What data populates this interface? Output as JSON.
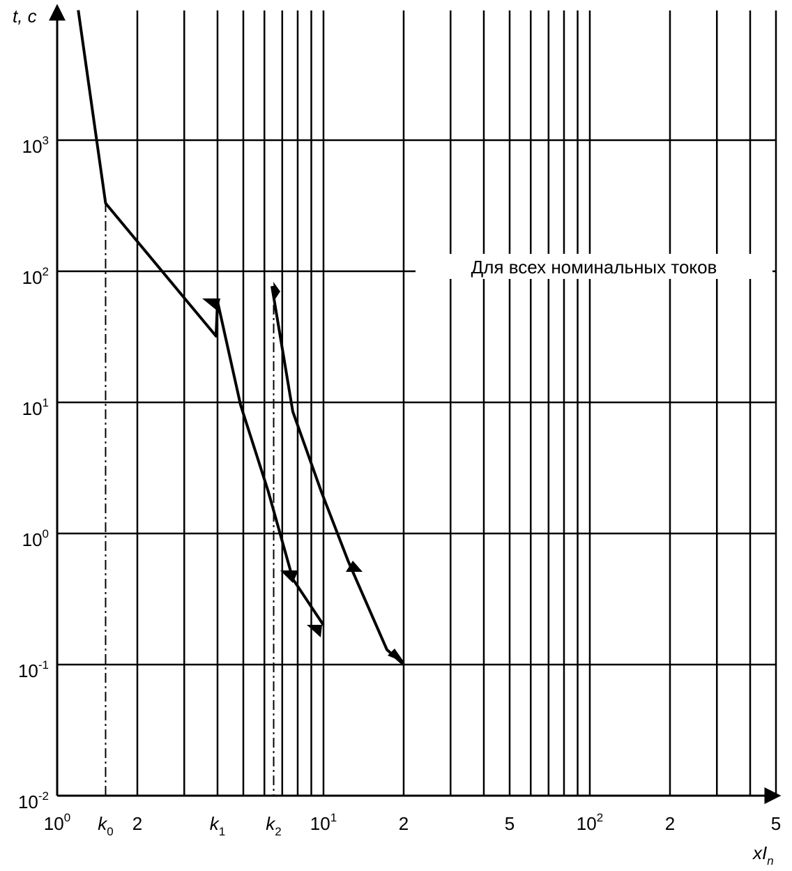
{
  "chart_data": {
    "type": "line",
    "y_label": "t, c",
    "x_label": "xI",
    "x_label_subscript": "n",
    "annotation": "Для всех номинальных токов",
    "log_x": true,
    "log_y": true,
    "grid": true,
    "xlim": [
      1,
      500
    ],
    "ylim": [
      0.01,
      10000
    ],
    "xticks": [
      {
        "value": 1,
        "label": "10",
        "power": "0"
      },
      {
        "value": 1.52,
        "label": "k",
        "subscript": "0"
      },
      2,
      {
        "value": 4,
        "label": "k",
        "subscript": "1"
      },
      {
        "value": 6.5,
        "label": "k",
        "subscript": "2"
      },
      {
        "value": 10,
        "label": "10",
        "power": "1"
      },
      {
        "value": 20,
        "label": "2"
      },
      {
        "value": 50,
        "label": "5"
      },
      {
        "value": 100,
        "label": "10",
        "power": "2"
      },
      {
        "value": 200,
        "label": "2"
      },
      {
        "value": 500,
        "label": "5"
      }
    ],
    "xgrid": [
      2,
      3,
      4,
      5,
      6,
      7,
      8,
      9,
      10,
      20,
      30,
      40,
      50,
      60,
      70,
      80,
      90,
      100,
      200,
      300,
      400,
      500
    ],
    "yticks": [
      {
        "value": 0.01,
        "label": "10",
        "power": "-2"
      },
      {
        "value": 0.1,
        "label": "10",
        "power": "-1"
      },
      {
        "value": 1,
        "label": "10",
        "power": "0"
      },
      {
        "value": 10,
        "label": "10",
        "power": "1"
      },
      {
        "value": 100,
        "label": "10",
        "power": "2"
      },
      {
        "value": 1000,
        "label": "10",
        "power": "3"
      }
    ],
    "series": [
      {
        "color": "#000000",
        "x": [
          1.2,
          1.52,
          3.95,
          4.0,
          4.88,
          6.2,
          7.67,
          10
        ],
        "values": [
          9800,
          330,
          32,
          59,
          9.6,
          2.1,
          0.45,
          0.2
        ]
      },
      {
        "color": "#000000",
        "x": [
          6.4,
          7.67,
          9.8,
          12.4,
          17.3,
          20
        ],
        "values": [
          77,
          8.5,
          2.1,
          0.61,
          0.13,
          0.1
        ]
      }
    ]
  }
}
